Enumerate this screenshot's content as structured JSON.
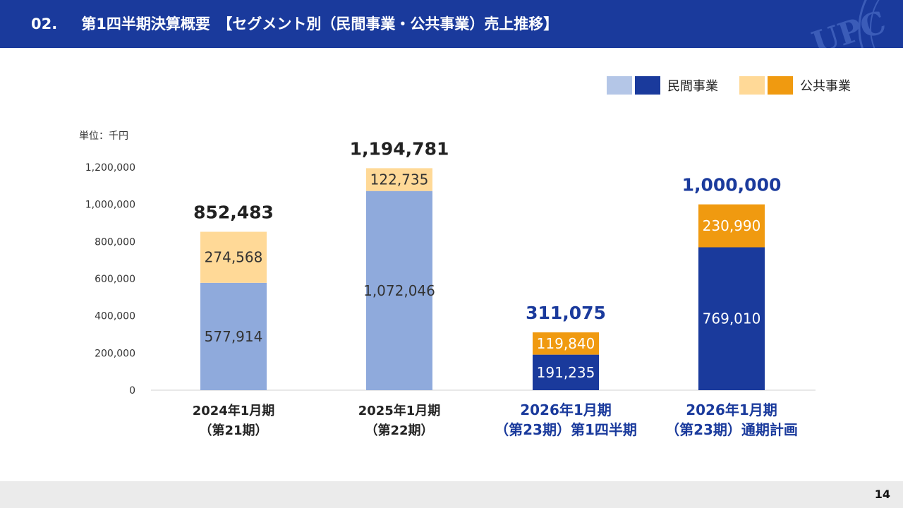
{
  "header": {
    "section_number": "02.",
    "title": "第1四半期決算概要　【セグメント別（民間事業・公共事業）売上推移】",
    "watermark": "UPC"
  },
  "legend": {
    "private_label": "民間事業",
    "public_label": "公共事業"
  },
  "unit_label": "単位：千円",
  "footer": {
    "page_number": "14"
  },
  "colors": {
    "header_bg": "#1a3a9c",
    "private_past": "#8faadc",
    "public_past": "#ffd997",
    "private_current": "#1a3a9c",
    "public_current": "#f09a10",
    "total_past_text": "#222222",
    "total_current_text": "#1a3a9c"
  },
  "chart_data": {
    "type": "bar",
    "stacked": true,
    "ylim": [
      0,
      1200000
    ],
    "yticks": [
      0,
      200000,
      400000,
      600000,
      800000,
      1000000,
      1200000
    ],
    "ytick_labels": [
      "0",
      "200,000",
      "400,000",
      "600,000",
      "800,000",
      "1,000,000",
      "1,200,000"
    ],
    "categories": [
      [
        "2024年1月期",
        "（第21期）"
      ],
      [
        "2025年1月期",
        "（第22期）"
      ],
      [
        "2026年1月期",
        "（第23期）第1四半期"
      ],
      [
        "2026年1月期",
        "（第23期）通期計画"
      ]
    ],
    "highlight": [
      false,
      false,
      true,
      true
    ],
    "series": [
      {
        "name": "民間事業",
        "values": [
          577914,
          1072046,
          191235,
          769010
        ],
        "labels": [
          "577,914",
          "1,072,046",
          "191,235",
          "769,010"
        ]
      },
      {
        "name": "公共事業",
        "values": [
          274568,
          122735,
          119840,
          230990
        ],
        "labels": [
          "274,568",
          "122,735",
          "119,840",
          "230,990"
        ]
      }
    ],
    "totals": [
      852483,
      1194781,
      311075,
      1000000
    ],
    "total_labels": [
      "852,483",
      "1,194,781",
      "311,075",
      "1,000,000"
    ],
    "grid": false,
    "legend_position": "top-right"
  }
}
